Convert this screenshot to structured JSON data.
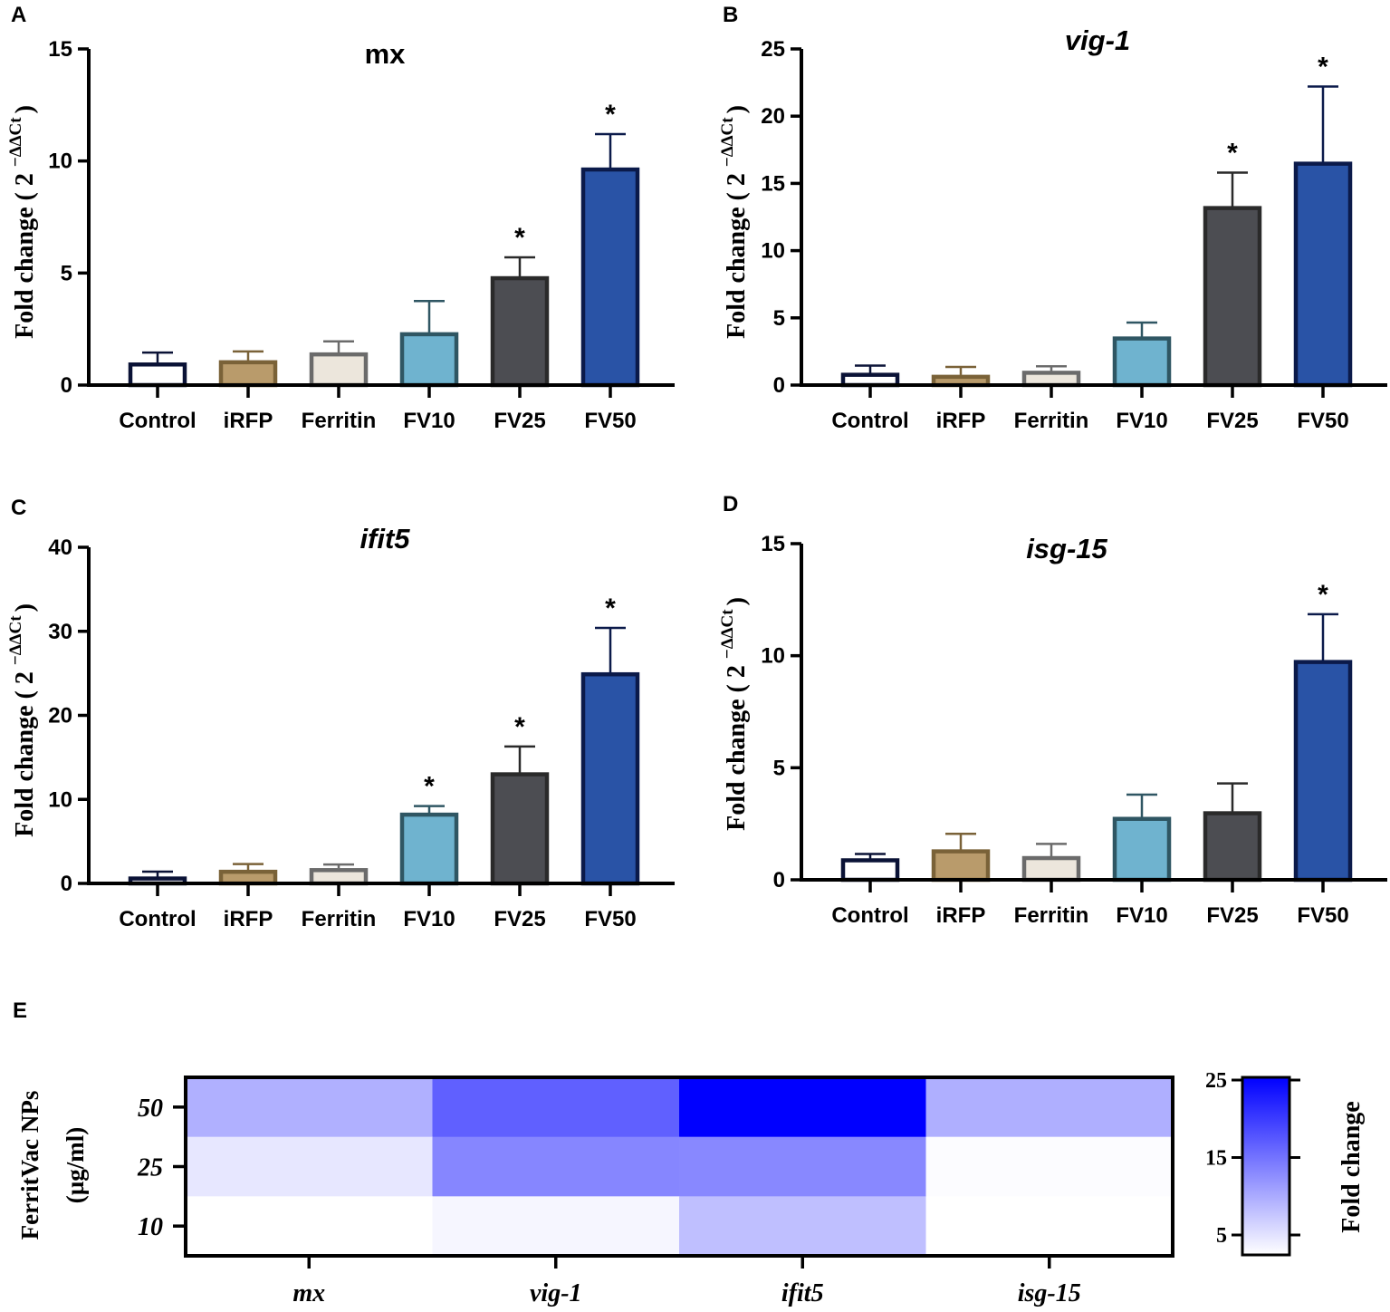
{
  "panels": [
    {
      "letter": "A",
      "title": "mx",
      "italic": false
    },
    {
      "letter": "B",
      "title": "vig-1",
      "italic": true
    },
    {
      "letter": "C",
      "title": "ifit5",
      "italic": true
    },
    {
      "letter": "D",
      "title": "isg-15",
      "italic": true
    }
  ],
  "y_axis_label": {
    "main": "Fold change ( 2 ",
    "superscript": "−ΔΔCt",
    "close": ")"
  },
  "significance_marker": "*",
  "colors": {
    "Control": {
      "fill": "#ffffff",
      "stroke": "#0a1236"
    },
    "iRFP": {
      "fill": "#b99b6b",
      "stroke": "#7a6238"
    },
    "Ferritin": {
      "fill": "#ece6dc",
      "stroke": "#6b6b6b"
    },
    "FV10": {
      "fill": "#6fb3cf",
      "stroke": "#2f5663"
    },
    "FV25": {
      "fill": "#4c4d52",
      "stroke": "#2a2a2a"
    },
    "FV50": {
      "fill": "#2953a6",
      "stroke": "#0b1a4a"
    }
  },
  "chart_data": [
    {
      "type": "bar",
      "panel": "A",
      "title": "mx",
      "xlabel": "",
      "ylabel": "Fold change ( 2 −ΔΔCt )",
      "categories": [
        "Control",
        "iRFP",
        "Ferritin",
        "FV10",
        "FV25",
        "FV50"
      ],
      "values": [
        1.0,
        1.1,
        1.45,
        2.35,
        4.85,
        9.7
      ],
      "errors": [
        0.45,
        0.4,
        0.5,
        1.4,
        0.85,
        1.5
      ],
      "significant": [
        false,
        false,
        false,
        false,
        true,
        true
      ],
      "ylim": [
        0,
        15
      ],
      "yticks": [
        0,
        5,
        10,
        15
      ]
    },
    {
      "type": "bar",
      "panel": "B",
      "title": "vig-1",
      "xlabel": "",
      "ylabel": "Fold change ( 2 −ΔΔCt )",
      "categories": [
        "Control",
        "iRFP",
        "Ferritin",
        "FV10",
        "FV25",
        "FV50"
      ],
      "values": [
        0.9,
        0.75,
        1.05,
        3.6,
        13.3,
        16.6
      ],
      "errors": [
        0.55,
        0.6,
        0.35,
        1.05,
        2.5,
        5.6
      ],
      "significant": [
        false,
        false,
        false,
        false,
        true,
        true
      ],
      "ylim": [
        0,
        25
      ],
      "yticks": [
        0,
        5,
        10,
        15,
        20,
        25
      ]
    },
    {
      "type": "bar",
      "panel": "C",
      "title": "ifit5",
      "xlabel": "",
      "ylabel": "Fold change ( 2 −ΔΔCt )",
      "categories": [
        "Control",
        "iRFP",
        "Ferritin",
        "FV10",
        "FV25",
        "FV50"
      ],
      "values": [
        0.8,
        1.6,
        1.8,
        8.4,
        13.2,
        25.1
      ],
      "errors": [
        0.6,
        0.7,
        0.45,
        0.8,
        3.1,
        5.3
      ],
      "significant": [
        false,
        false,
        false,
        true,
        true,
        true
      ],
      "ylim": [
        0,
        40
      ],
      "yticks": [
        0,
        10,
        20,
        30,
        40
      ]
    },
    {
      "type": "bar",
      "panel": "D",
      "title": "isg-15",
      "xlabel": "",
      "ylabel": "Fold change ( 2 −ΔΔCt )",
      "categories": [
        "Control",
        "iRFP",
        "Ferritin",
        "FV10",
        "FV25",
        "FV50"
      ],
      "values": [
        0.95,
        1.35,
        1.05,
        2.8,
        3.05,
        9.8
      ],
      "errors": [
        0.2,
        0.7,
        0.55,
        1.0,
        1.25,
        2.05
      ],
      "significant": [
        false,
        false,
        false,
        false,
        false,
        true
      ],
      "ylim": [
        0,
        15
      ],
      "yticks": [
        0,
        5,
        10,
        15
      ]
    },
    {
      "type": "heatmap",
      "panel": "E",
      "x": [
        "mx",
        "vig-1",
        "ifit5",
        "isg-15"
      ],
      "y": [
        "50",
        "25",
        "10"
      ],
      "ylabel": [
        "FerritVac NPs",
        "(µg/ml)"
      ],
      "values": [
        [
          9.7,
          16.6,
          25.1,
          9.8
        ],
        [
          4.85,
          13.3,
          13.2,
          3.05
        ],
        [
          2.35,
          3.6,
          8.4,
          2.8
        ]
      ],
      "colorbar": {
        "label": "Fold change",
        "ticks": [
          5,
          15,
          25
        ],
        "range": [
          2.8,
          25
        ],
        "low_color": "#ffffff",
        "high_color": "#0000ff"
      }
    }
  ],
  "heatmap_panel_letter": "E"
}
